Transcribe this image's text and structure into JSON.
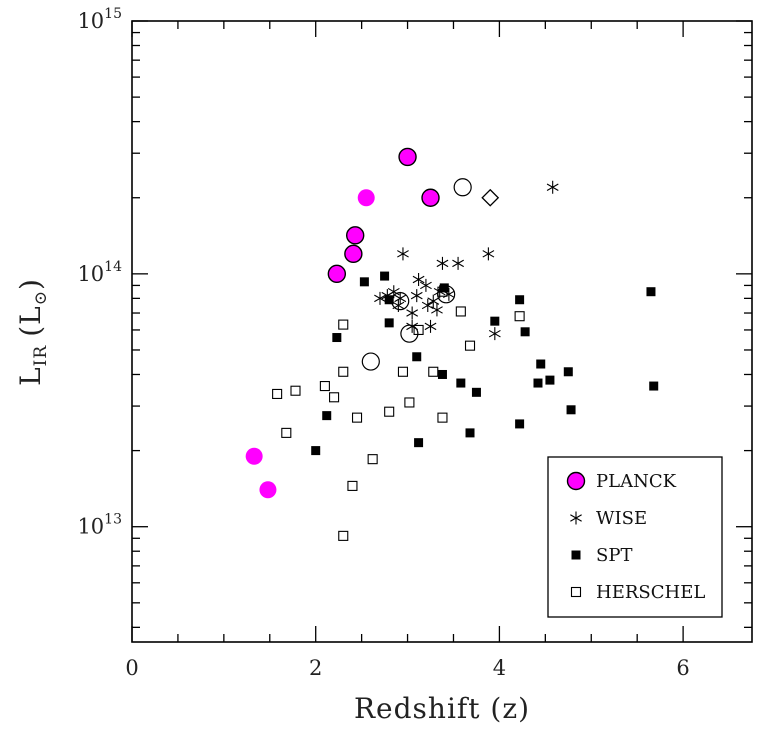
{
  "chart_data": {
    "type": "scatter",
    "title": "",
    "xlabel": "Redshift (z)",
    "ylabel": "L_IR (L_sun)",
    "ylabel_parts": {
      "main": "L",
      "sub": "IR",
      "unit_open": "(L",
      "unit_sub": "⊙",
      "unit_close": ")"
    },
    "xlim": [
      0,
      6.75
    ],
    "ylim": [
      3500000000000.0,
      1000000000000000.0
    ],
    "yscale": "log",
    "x_ticks": [
      {
        "value": 0,
        "label": "0"
      },
      {
        "value": 2,
        "label": "2"
      },
      {
        "value": 4,
        "label": "4"
      },
      {
        "value": 6,
        "label": "6"
      }
    ],
    "y_ticks": [
      {
        "value": 10000000000000.0,
        "base": "10",
        "exp": "13"
      },
      {
        "value": 100000000000000.0,
        "base": "10",
        "exp": "14"
      },
      {
        "value": 1000000000000000.0,
        "base": "10",
        "exp": "15"
      }
    ],
    "legend_position": "bottom-right",
    "series": [
      {
        "name": "PLANCK",
        "marker": "filled-circle",
        "color": "#ff00ff",
        "points": [
          {
            "x": 3.0,
            "y": 290000000000000.0,
            "outlined": true
          },
          {
            "x": 2.55,
            "y": 200000000000000.0,
            "outlined": false
          },
          {
            "x": 3.25,
            "y": 200000000000000.0,
            "outlined": true
          },
          {
            "x": 2.43,
            "y": 142000000000000.0,
            "outlined": true
          },
          {
            "x": 2.41,
            "y": 120000000000000.0,
            "outlined": true
          },
          {
            "x": 2.23,
            "y": 100000000000000.0,
            "outlined": true
          },
          {
            "x": 1.33,
            "y": 19000000000000.0,
            "outlined": false
          },
          {
            "x": 1.48,
            "y": 14000000000000.0,
            "outlined": false
          }
        ]
      },
      {
        "name": "WISE",
        "marker": "asterisk",
        "color": "#000000",
        "points": [
          {
            "x": 4.58,
            "y": 220000000000000.0
          },
          {
            "x": 2.95,
            "y": 120000000000000.0
          },
          {
            "x": 3.38,
            "y": 110000000000000.0
          },
          {
            "x": 3.55,
            "y": 110000000000000.0
          },
          {
            "x": 3.88,
            "y": 120000000000000.0
          },
          {
            "x": 3.12,
            "y": 95000000000000.0
          },
          {
            "x": 3.2,
            "y": 90000000000000.0
          },
          {
            "x": 3.35,
            "y": 85000000000000.0
          },
          {
            "x": 2.7,
            "y": 80000000000000.0
          },
          {
            "x": 2.78,
            "y": 82000000000000.0
          },
          {
            "x": 2.85,
            "y": 85000000000000.0
          },
          {
            "x": 2.92,
            "y": 80000000000000.0
          },
          {
            "x": 3.1,
            "y": 82000000000000.0
          },
          {
            "x": 3.28,
            "y": 78000000000000.0
          },
          {
            "x": 3.45,
            "y": 83000000000000.0
          },
          {
            "x": 2.9,
            "y": 75000000000000.0
          },
          {
            "x": 3.05,
            "y": 70000000000000.0
          },
          {
            "x": 3.22,
            "y": 75000000000000.0
          },
          {
            "x": 3.32,
            "y": 72000000000000.0
          },
          {
            "x": 3.05,
            "y": 62000000000000.0
          },
          {
            "x": 3.25,
            "y": 62000000000000.0
          },
          {
            "x": 3.95,
            "y": 58000000000000.0
          }
        ]
      },
      {
        "name": "SPT",
        "marker": "filled-square",
        "color": "#000000",
        "points": [
          {
            "x": 2.75,
            "y": 98000000000000.0
          },
          {
            "x": 2.53,
            "y": 93000000000000.0
          },
          {
            "x": 3.4,
            "y": 88000000000000.0
          },
          {
            "x": 2.8,
            "y": 79000000000000.0
          },
          {
            "x": 4.22,
            "y": 79000000000000.0
          },
          {
            "x": 5.65,
            "y": 85000000000000.0
          },
          {
            "x": 2.8,
            "y": 64000000000000.0
          },
          {
            "x": 3.95,
            "y": 65000000000000.0
          },
          {
            "x": 2.23,
            "y": 56000000000000.0
          },
          {
            "x": 4.28,
            "y": 59000000000000.0
          },
          {
            "x": 3.1,
            "y": 47000000000000.0
          },
          {
            "x": 4.45,
            "y": 44000000000000.0
          },
          {
            "x": 3.38,
            "y": 40000000000000.0
          },
          {
            "x": 4.75,
            "y": 41000000000000.0
          },
          {
            "x": 3.58,
            "y": 37000000000000.0
          },
          {
            "x": 4.42,
            "y": 37000000000000.0
          },
          {
            "x": 4.55,
            "y": 38000000000000.0
          },
          {
            "x": 3.75,
            "y": 34000000000000.0
          },
          {
            "x": 5.68,
            "y": 36000000000000.0
          },
          {
            "x": 4.78,
            "y": 29000000000000.0
          },
          {
            "x": 2.12,
            "y": 27500000000000.0
          },
          {
            "x": 4.22,
            "y": 25500000000000.0
          },
          {
            "x": 3.68,
            "y": 23500000000000.0
          },
          {
            "x": 3.12,
            "y": 21500000000000.0
          },
          {
            "x": 2.0,
            "y": 20000000000000.0
          }
        ]
      },
      {
        "name": "HERSCHEL",
        "marker": "open-square",
        "color": "#000000",
        "points": [
          {
            "x": 2.3,
            "y": 63000000000000.0
          },
          {
            "x": 3.38,
            "y": 85000000000000.0
          },
          {
            "x": 3.58,
            "y": 71000000000000.0
          },
          {
            "x": 4.22,
            "y": 68000000000000.0
          },
          {
            "x": 3.12,
            "y": 60000000000000.0
          },
          {
            "x": 3.68,
            "y": 52000000000000.0
          },
          {
            "x": 2.3,
            "y": 41000000000000.0
          },
          {
            "x": 2.95,
            "y": 41000000000000.0
          },
          {
            "x": 3.28,
            "y": 41000000000000.0
          },
          {
            "x": 2.1,
            "y": 36000000000000.0
          },
          {
            "x": 1.58,
            "y": 33500000000000.0
          },
          {
            "x": 1.78,
            "y": 34500000000000.0
          },
          {
            "x": 2.2,
            "y": 32500000000000.0
          },
          {
            "x": 3.02,
            "y": 31000000000000.0
          },
          {
            "x": 2.8,
            "y": 28500000000000.0
          },
          {
            "x": 2.45,
            "y": 27000000000000.0
          },
          {
            "x": 3.38,
            "y": 27000000000000.0
          },
          {
            "x": 1.68,
            "y": 23500000000000.0
          },
          {
            "x": 2.62,
            "y": 18500000000000.0
          },
          {
            "x": 2.4,
            "y": 14500000000000.0
          },
          {
            "x": 2.3,
            "y": 9200000000000.0
          }
        ]
      },
      {
        "name": "",
        "marker": "open-circle",
        "color": "#000000",
        "points": [
          {
            "x": 3.6,
            "y": 220000000000000.0
          },
          {
            "x": 2.92,
            "y": 78000000000000.0
          },
          {
            "x": 3.42,
            "y": 83000000000000.0
          },
          {
            "x": 3.02,
            "y": 58000000000000.0
          },
          {
            "x": 2.6,
            "y": 45000000000000.0
          }
        ]
      },
      {
        "name": "",
        "marker": "open-diamond",
        "color": "#000000",
        "points": [
          {
            "x": 3.9,
            "y": 200000000000000.0
          }
        ]
      }
    ]
  }
}
